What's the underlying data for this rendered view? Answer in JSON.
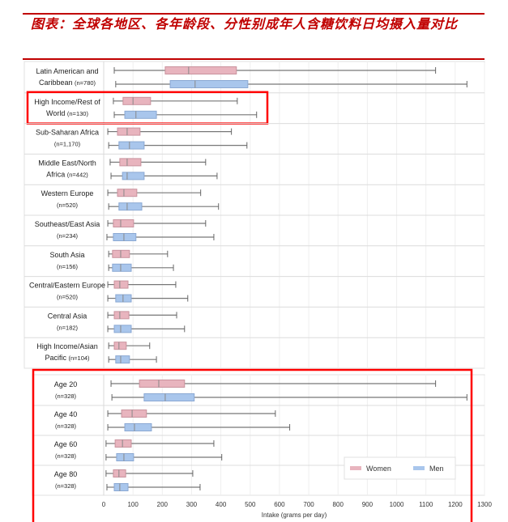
{
  "title": "图表：全球各地区、各年龄段、分性别成年人含糖饮料日均摄入量对比",
  "chart_data": {
    "type": "boxplot",
    "orientation": "horizontal",
    "xlabel": "Intake (grams per day)",
    "xlim": [
      0,
      1300
    ],
    "xticks": [
      0,
      100,
      200,
      300,
      400,
      500,
      600,
      700,
      800,
      900,
      1000,
      1100,
      1200,
      1300
    ],
    "grid": true,
    "legend": {
      "placement": "bottom-right",
      "entries": [
        {
          "name": "Women",
          "color": "#e8b4be"
        },
        {
          "name": "Men",
          "color": "#a9c6ec"
        }
      ]
    },
    "highlight_color": "#ff0000",
    "panels": [
      {
        "groups": [
          {
            "label": [
              "Latin American and",
              "Caribbean (n=780)"
            ],
            "women": [
              36,
              210,
              290,
              453,
              1133
            ],
            "men": [
              41,
              227,
              312,
              492,
              1240
            ]
          },
          {
            "label": [
              "High Income/Rest of",
              "World (n=130)"
            ],
            "women": [
              33,
              66,
              100,
              160,
              456
            ],
            "men": [
              36,
              72,
              110,
              180,
              522
            ],
            "highlighted": true
          },
          {
            "label": [
              "Sub-Saharan Africa",
              "(n=1,170)"
            ],
            "women": [
              14,
              47,
              80,
              124,
              436
            ],
            "men": [
              17,
              52,
              88,
              138,
              489
            ]
          },
          {
            "label": [
              "Middle East/North",
              "Africa (n=442)"
            ],
            "women": [
              22,
              55,
              80,
              127,
              348
            ],
            "men": [
              25,
              64,
              80,
              138,
              387
            ]
          },
          {
            "label": [
              "Western Europe",
              "(n=520)"
            ],
            "women": [
              14,
              47,
              69,
              113,
              331
            ],
            "men": [
              17,
              52,
              80,
              130,
              392
            ]
          },
          {
            "label": [
              "Southeast/East Asia",
              "(n=234)"
            ],
            "women": [
              14,
              33,
              58,
              102,
              348
            ],
            "men": [
              11,
              33,
              69,
              110,
              376
            ]
          },
          {
            "label": [
              "South Asia",
              "(n=156)"
            ],
            "women": [
              17,
              30,
              58,
              88,
              218
            ],
            "men": [
              17,
              30,
              58,
              94,
              238
            ]
          },
          {
            "label": [
              "Central/Eastern Europe",
              "(n=520)"
            ],
            "women": [
              14,
              36,
              55,
              83,
              246
            ],
            "men": [
              14,
              41,
              66,
              94,
              287
            ]
          },
          {
            "label": [
              "Central Asia",
              "(n=182)"
            ],
            "women": [
              14,
              36,
              55,
              86,
              249
            ],
            "men": [
              14,
              36,
              58,
              94,
              276
            ]
          },
          {
            "label": [
              "High Income/Asian",
              "Pacific (n=104)"
            ],
            "women": [
              17,
              36,
              52,
              77,
              157
            ],
            "men": [
              17,
              41,
              58,
              88,
              180
            ]
          }
        ]
      },
      {
        "highlighted": true,
        "groups": [
          {
            "label": [
              "Age 20",
              "(n=328)"
            ],
            "women": [
              25,
              122,
              188,
              276,
              1133
            ],
            "men": [
              28,
              138,
              210,
              309,
              1240
            ]
          },
          {
            "label": [
              "Age 40",
              "(n=328)"
            ],
            "women": [
              14,
              61,
              97,
              146,
              586
            ],
            "men": [
              14,
              72,
              105,
              163,
              635
            ]
          },
          {
            "label": [
              "Age 60",
              "(n=328)"
            ],
            "women": [
              8,
              39,
              64,
              94,
              376
            ],
            "men": [
              8,
              44,
              69,
              102,
              403
            ]
          },
          {
            "label": [
              "Age 80",
              "(n=328)"
            ],
            "women": [
              8,
              33,
              52,
              75,
              304
            ],
            "men": [
              11,
              36,
              55,
              83,
              329
            ]
          }
        ]
      }
    ]
  }
}
